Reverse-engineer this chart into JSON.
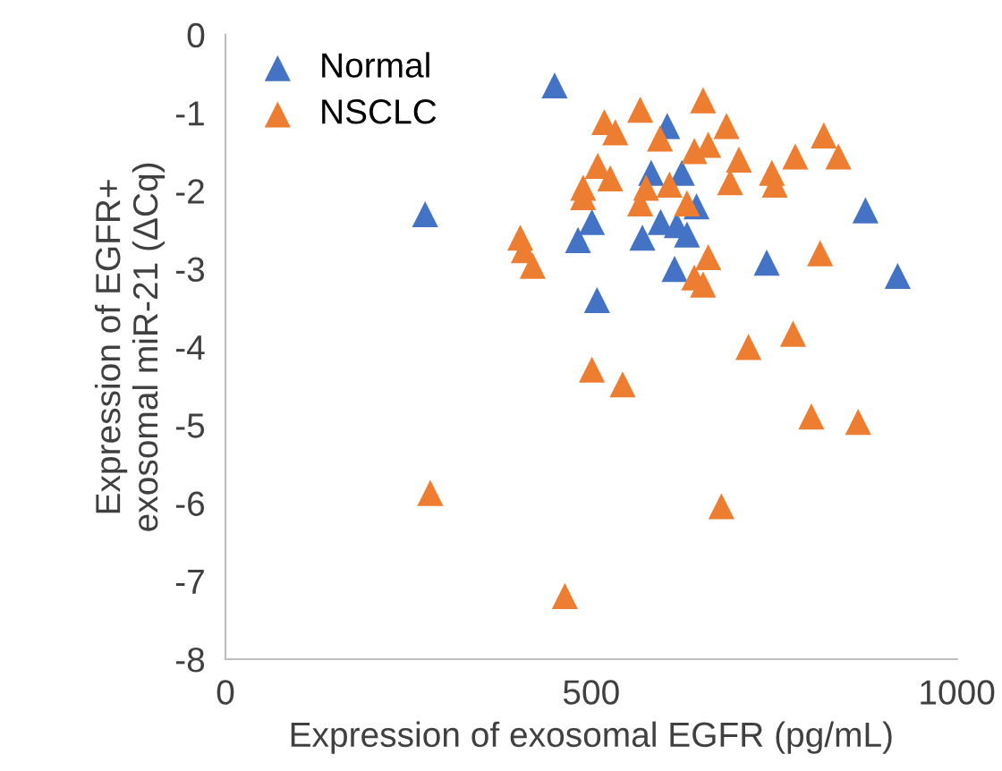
{
  "chart_data": {
    "type": "scatter",
    "xlabel": "Expression of exosomal EGFR (pg/mL)",
    "ylabel": "Expression of EGFR+\nexosomal miR-21 (ΔCq)",
    "xlim": [
      0,
      1000
    ],
    "xticks": [
      0,
      500,
      1000
    ],
    "ylim": [
      -8,
      0
    ],
    "yticks": [
      -8,
      -7,
      -6,
      -5,
      -4,
      -3,
      -2,
      -1,
      0
    ],
    "grid": false,
    "legend": "top left",
    "marker": "triangle",
    "series": [
      {
        "name": "Normal",
        "color": "#4472c4",
        "x": [
          273,
          450,
          604,
          582,
          624,
          595,
          570,
          631,
          617,
          644,
          501,
          482,
          614,
          508,
          740,
          875,
          919
        ],
        "values": [
          -2.3,
          -0.65,
          -1.17,
          -1.77,
          -1.77,
          -2.4,
          -2.6,
          -2.56,
          -2.44,
          -2.2,
          -2.4,
          -2.63,
          -3.0,
          -3.4,
          -2.92,
          -2.25,
          -3.09
        ]
      },
      {
        "name": "NSCLC",
        "color": "#ed7d31",
        "x": [
          567,
          653,
          518,
          533,
          594,
          685,
          641,
          660,
          702,
          690,
          747,
          751,
          509,
          526,
          489,
          489,
          575,
          567,
          607,
          631,
          403,
          408,
          420,
          660,
          641,
          653,
          715,
          501,
          543,
          818,
          779,
          838,
          813,
          776,
          801,
          865,
          678,
          464,
          280
        ],
        "values": [
          -0.96,
          -0.84,
          -1.12,
          -1.25,
          -1.33,
          -1.17,
          -1.49,
          -1.41,
          -1.6,
          -1.89,
          -1.77,
          -1.92,
          -1.68,
          -1.84,
          -1.96,
          -2.08,
          -1.96,
          -2.16,
          -1.92,
          -2.16,
          -2.6,
          -2.76,
          -2.96,
          -2.85,
          -3.11,
          -3.2,
          -4.0,
          -4.29,
          -4.48,
          -1.29,
          -1.56,
          -1.56,
          -2.8,
          -3.83,
          -4.89,
          -4.96,
          -6.04,
          -7.19,
          -5.87
        ]
      }
    ]
  }
}
